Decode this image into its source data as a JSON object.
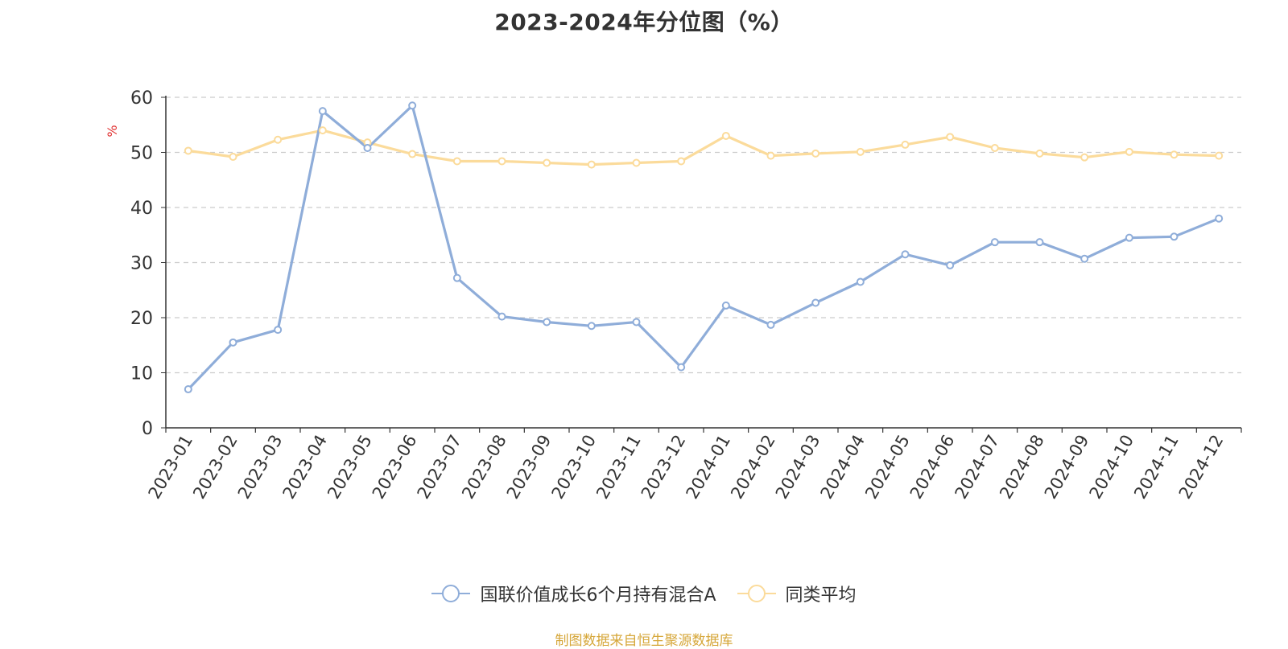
{
  "chart_data": {
    "type": "line",
    "title": "2023-2024年分位图（%）",
    "xlabel": "",
    "ylabel": "%",
    "ylim": [
      0,
      60
    ],
    "yticks": [
      0,
      10,
      20,
      30,
      40,
      50,
      60
    ],
    "grid": true,
    "legend_position": "bottom-center",
    "categories": [
      "2023-01",
      "2023-02",
      "2023-03",
      "2023-04",
      "2023-05",
      "2023-06",
      "2023-07",
      "2023-08",
      "2023-09",
      "2023-10",
      "2023-11",
      "2023-12",
      "2024-01",
      "2024-02",
      "2024-03",
      "2024-04",
      "2024-05",
      "2024-06",
      "2024-07",
      "2024-08",
      "2024-09",
      "2024-10",
      "2024-11",
      "2024-12"
    ],
    "series": [
      {
        "name": "国联价值成长6个月持有混合A",
        "color": "#8fadd9",
        "values": [
          7.0,
          15.5,
          17.8,
          57.5,
          50.8,
          58.5,
          27.2,
          20.2,
          19.2,
          18.5,
          19.2,
          11.0,
          22.2,
          18.7,
          22.7,
          26.5,
          31.5,
          29.5,
          33.7,
          33.7,
          30.7,
          34.5,
          34.7,
          38.0
        ]
      },
      {
        "name": "同类平均",
        "color": "#fbdb9b",
        "values": [
          50.3,
          49.2,
          52.3,
          54.0,
          51.8,
          49.7,
          48.4,
          48.4,
          48.1,
          47.8,
          48.1,
          48.4,
          53.0,
          49.4,
          49.8,
          50.1,
          51.4,
          52.8,
          50.8,
          49.8,
          49.1,
          50.1,
          49.6,
          49.4
        ]
      }
    ]
  },
  "source_note": "制图数据来自恒生聚源数据库",
  "colors": {
    "axis": "#333333",
    "grid": "#cccccc",
    "ylabel": "#e03030",
    "source": "#d6a73a"
  }
}
